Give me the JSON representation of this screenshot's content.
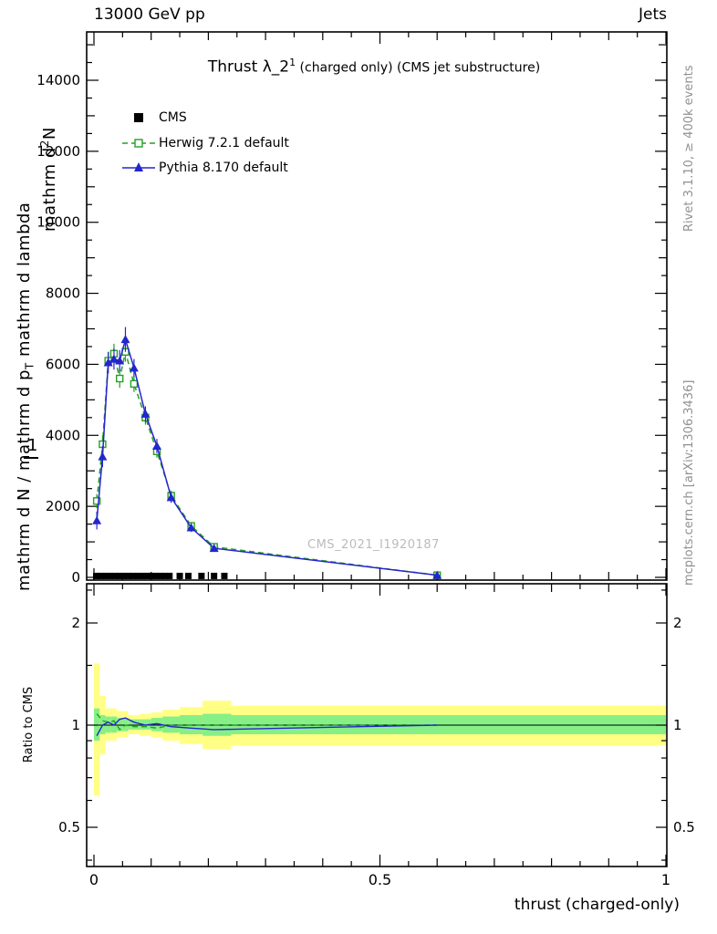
{
  "header": {
    "left": "13000 GeV pp",
    "right": "Jets"
  },
  "title": {
    "main": "Thrust λ_2",
    "sup": "1",
    "rest": " (charged only) (CMS jet substructure)"
  },
  "legend": {
    "items": [
      {
        "label": "CMS"
      },
      {
        "label": "Herwig 7.2.1 default"
      },
      {
        "label": "Pythia 8.170 default"
      }
    ]
  },
  "watermark": "CMS_2021_I1920187",
  "rivet_note": "Rivet 3.1.10, ≥ 400k events",
  "mcplots_note": "mcplots.cern.ch [arXiv:1306.3436]",
  "ylabel": {
    "line1_pre": "mathrm d",
    "line1_sup": "2",
    "line1_post": "N",
    "line2_pre": "mathrm d N / mathrm d p",
    "line2_sub": "T",
    "line2_post": " mathrm d lambda",
    "one": "1"
  },
  "ratio_label": "Ratio to CMS",
  "xlabel": "thrust (charged-only)",
  "colors": {
    "frame": "#000000",
    "cms": "#000000",
    "herwig": "#24a024",
    "pythia": "#2525cd",
    "band_yellow": "#ffff85",
    "band_green": "#86ef86",
    "gray_note": "#909090",
    "watermark": "#bbbbbb"
  },
  "chart_data": {
    "type": "line",
    "title": "Thrust λ_2^1 (charged only) (CMS jet substructure)",
    "xlabel": "thrust (charged-only)",
    "ylabel_garbled": [
      "mathrm d²N",
      "mathrm d N / mathrm d p_T mathrm d lambda",
      "1"
    ],
    "ratio_ylabel": "Ratio to CMS",
    "x_range": [
      0,
      1
    ],
    "y_main_range": [
      0,
      15300
    ],
    "y_ratio_range": [
      0.38,
      2.6
    ],
    "y_ratio_scale": "log",
    "x_ticks": {
      "major": [
        {
          "v": 0,
          "label": "0"
        },
        {
          "v": 0.5,
          "label": "0.5"
        },
        {
          "v": 1,
          "label": "1"
        }
      ],
      "minor_step": 0.05
    },
    "y_main_ticks": [
      {
        "v": 0,
        "label": "0"
      },
      {
        "v": 2000,
        "label": "2000"
      },
      {
        "v": 4000,
        "label": "4000"
      },
      {
        "v": 6000,
        "label": "6000"
      },
      {
        "v": 8000,
        "label": "8000"
      },
      {
        "v": 10000,
        "label": "10000"
      },
      {
        "v": 12000,
        "label": "12000"
      },
      {
        "v": 14000,
        "label": "14000"
      }
    ],
    "y_ratio_ticks": [
      {
        "v": 0.5,
        "label": "0.5"
      },
      {
        "v": 1,
        "label": "1"
      },
      {
        "v": 2,
        "label": "2"
      }
    ],
    "y_ratio_minor": [
      0.4,
      0.6,
      0.7,
      0.8,
      0.9,
      1.5,
      2.5
    ],
    "series": [
      {
        "name": "CMS",
        "style": "squares",
        "marker": "filled-square",
        "color": "#000000",
        "x": [
          0.004,
          0.012,
          0.02,
          0.028,
          0.036,
          0.044,
          0.052,
          0.06,
          0.068,
          0.076,
          0.084,
          0.092,
          0.1,
          0.108,
          0.116,
          0.124,
          0.132,
          0.15,
          0.165,
          0.188,
          0.21,
          0.228,
          0.6
        ],
        "y": [
          40,
          40,
          40,
          40,
          40,
          40,
          40,
          40,
          40,
          40,
          40,
          40,
          40,
          40,
          40,
          40,
          40,
          40,
          40,
          40,
          40,
          40,
          40
        ]
      },
      {
        "name": "Herwig 7.2.1 default",
        "style": "curve",
        "line": "dashed",
        "marker": "open-square",
        "color": "#24a024",
        "x": [
          0.005,
          0.015,
          0.025,
          0.035,
          0.045,
          0.055,
          0.07,
          0.09,
          0.11,
          0.135,
          0.17,
          0.21,
          0.6
        ],
        "y": [
          2150,
          3750,
          6100,
          6300,
          5600,
          6350,
          5450,
          4500,
          3550,
          2300,
          1450,
          860,
          60
        ],
        "yerr": [
          200,
          250,
          250,
          280,
          260,
          280,
          230,
          200,
          180,
          140,
          110,
          80,
          20
        ]
      },
      {
        "name": "Pythia 8.170 default",
        "style": "curve",
        "line": "solid",
        "marker": "triangle",
        "color": "#2525cd",
        "x": [
          0.005,
          0.015,
          0.025,
          0.035,
          0.045,
          0.055,
          0.07,
          0.09,
          0.11,
          0.135,
          0.17,
          0.21,
          0.6
        ],
        "y": [
          1600,
          3400,
          6050,
          6150,
          6100,
          6700,
          5900,
          4600,
          3700,
          2250,
          1400,
          820,
          60
        ],
        "yerr": [
          250,
          300,
          300,
          300,
          300,
          350,
          250,
          220,
          200,
          150,
          120,
          90,
          25
        ]
      }
    ],
    "ratio": {
      "bin_edges": [
        0,
        0.01,
        0.02,
        0.03,
        0.04,
        0.05,
        0.06,
        0.08,
        0.1,
        0.12,
        0.15,
        0.19,
        0.24,
        1.0
      ],
      "yellow_lo": [
        0.62,
        0.82,
        0.9,
        0.9,
        0.92,
        0.92,
        0.94,
        0.93,
        0.92,
        0.9,
        0.88,
        0.85,
        0.87
      ],
      "yellow_hi": [
        1.52,
        1.22,
        1.12,
        1.12,
        1.1,
        1.1,
        1.07,
        1.08,
        1.09,
        1.11,
        1.13,
        1.18,
        1.14
      ],
      "green_lo": [
        0.9,
        0.94,
        0.95,
        0.95,
        0.96,
        0.96,
        0.97,
        0.97,
        0.96,
        0.95,
        0.94,
        0.93,
        0.94
      ],
      "green_hi": [
        1.12,
        1.07,
        1.06,
        1.06,
        1.05,
        1.05,
        1.04,
        1.04,
        1.05,
        1.06,
        1.07,
        1.08,
        1.07
      ],
      "pythia_line": {
        "x": [
          0.005,
          0.015,
          0.025,
          0.035,
          0.045,
          0.055,
          0.07,
          0.09,
          0.11,
          0.135,
          0.17,
          0.21,
          0.6
        ],
        "y": [
          0.93,
          1.0,
          1.02,
          1.0,
          1.04,
          1.05,
          1.02,
          1.0,
          1.01,
          0.99,
          0.98,
          0.97,
          1.0
        ]
      },
      "herwig_line": {
        "x": [
          0.005,
          0.015,
          0.025,
          0.035,
          0.045,
          0.055,
          0.07,
          0.09,
          0.11,
          0.135,
          0.17,
          0.21,
          0.6
        ],
        "y": [
          1.08,
          1.03,
          1.02,
          1.03,
          0.97,
          1.0,
          0.99,
          0.99,
          0.98,
          1.0,
          1.0,
          1.0,
          1.0
        ]
      }
    }
  }
}
